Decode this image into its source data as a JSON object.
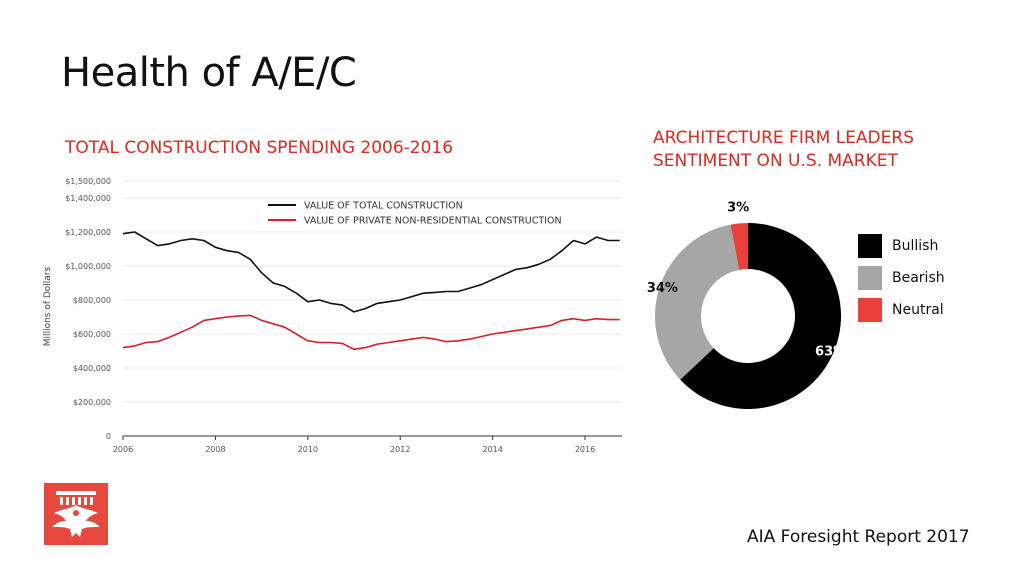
{
  "page": {
    "title": "Health of A/E/C",
    "footer": "AIA Foresight Report 2017"
  },
  "colors": {
    "accent_red": "#e0261e",
    "series_black": "#111111",
    "series_red": "#d4202a",
    "pie_bullish": "#000000",
    "pie_bearish": "#a6a6a6",
    "pie_neutral": "#e8403a",
    "logo_bg": "#e8493f"
  },
  "logo": {
    "icon": "aia-eagle-logo-icon"
  },
  "chart_data": [
    {
      "type": "line",
      "title": "TOTAL CONSTRUCTION SPENDING 2006-2016",
      "ylabel": "Millions of Dollars",
      "xlabel": "",
      "xlim": [
        2006,
        2016.8
      ],
      "ylim": [
        0,
        1500000
      ],
      "x_ticks": [
        "2006",
        "2008",
        "2010",
        "2012",
        "2014",
        "2016"
      ],
      "x_tick_values": [
        2006,
        2008,
        2010,
        2012,
        2014,
        2016
      ],
      "y_ticks": [
        "0",
        "$200,000",
        "$400,000",
        "$600,000",
        "$800,000",
        "$1,000,000",
        "$1,200,000",
        "$1,400,000",
        "$1,500,000"
      ],
      "y_tick_values": [
        0,
        200000,
        400000,
        600000,
        800000,
        1000000,
        1200000,
        1400000,
        1500000
      ],
      "grid": true,
      "legend_position": "top-right",
      "series": [
        {
          "name": "VALUE OF TOTAL CONSTRUCTION",
          "color": "#111111",
          "x": [
            2006.0,
            2006.25,
            2006.5,
            2006.75,
            2007.0,
            2007.25,
            2007.5,
            2007.75,
            2008.0,
            2008.25,
            2008.5,
            2008.75,
            2009.0,
            2009.25,
            2009.5,
            2009.75,
            2010.0,
            2010.25,
            2010.5,
            2010.75,
            2011.0,
            2011.25,
            2011.5,
            2011.75,
            2012.0,
            2012.25,
            2012.5,
            2012.75,
            2013.0,
            2013.25,
            2013.5,
            2013.75,
            2014.0,
            2014.25,
            2014.5,
            2014.75,
            2015.0,
            2015.25,
            2015.5,
            2015.75,
            2016.0,
            2016.25,
            2016.5,
            2016.75
          ],
          "y": [
            1190000,
            1200000,
            1160000,
            1120000,
            1130000,
            1150000,
            1160000,
            1150000,
            1110000,
            1090000,
            1080000,
            1040000,
            960000,
            900000,
            880000,
            840000,
            790000,
            800000,
            780000,
            770000,
            730000,
            750000,
            780000,
            790000,
            800000,
            820000,
            840000,
            845000,
            850000,
            850000,
            870000,
            890000,
            920000,
            950000,
            980000,
            990000,
            1010000,
            1040000,
            1090000,
            1150000,
            1130000,
            1170000,
            1150000,
            1150000
          ]
        },
        {
          "name": "VALUE OF PRIVATE NON-RESIDENTIAL CONSTRUCTION",
          "color": "#d4202a",
          "x": [
            2006.0,
            2006.25,
            2006.5,
            2006.75,
            2007.0,
            2007.25,
            2007.5,
            2007.75,
            2008.0,
            2008.25,
            2008.5,
            2008.75,
            2009.0,
            2009.25,
            2009.5,
            2009.75,
            2010.0,
            2010.25,
            2010.5,
            2010.75,
            2011.0,
            2011.25,
            2011.5,
            2011.75,
            2012.0,
            2012.25,
            2012.5,
            2012.75,
            2013.0,
            2013.25,
            2013.5,
            2013.75,
            2014.0,
            2014.25,
            2014.5,
            2014.75,
            2015.0,
            2015.25,
            2015.5,
            2015.75,
            2016.0,
            2016.25,
            2016.5,
            2016.75
          ],
          "y": [
            520000,
            530000,
            550000,
            555000,
            580000,
            610000,
            640000,
            680000,
            690000,
            700000,
            705000,
            710000,
            680000,
            660000,
            640000,
            600000,
            560000,
            550000,
            550000,
            545000,
            510000,
            520000,
            540000,
            550000,
            560000,
            570000,
            580000,
            570000,
            555000,
            560000,
            570000,
            585000,
            600000,
            610000,
            620000,
            630000,
            640000,
            650000,
            680000,
            690000,
            680000,
            690000,
            685000,
            685000
          ]
        }
      ]
    },
    {
      "type": "pie",
      "title": "ARCHITECTURE FIRM LEADERS SENTIMENT ON U.S. MARKET",
      "legend_position": "right",
      "slices": [
        {
          "label": "Bullish",
          "value": 63,
          "display": "63%",
          "color": "#000000"
        },
        {
          "label": "Bearish",
          "value": 34,
          "display": "34%",
          "color": "#a6a6a6"
        },
        {
          "label": "Neutral",
          "value": 3,
          "display": "3%",
          "color": "#e8403a"
        }
      ]
    }
  ]
}
